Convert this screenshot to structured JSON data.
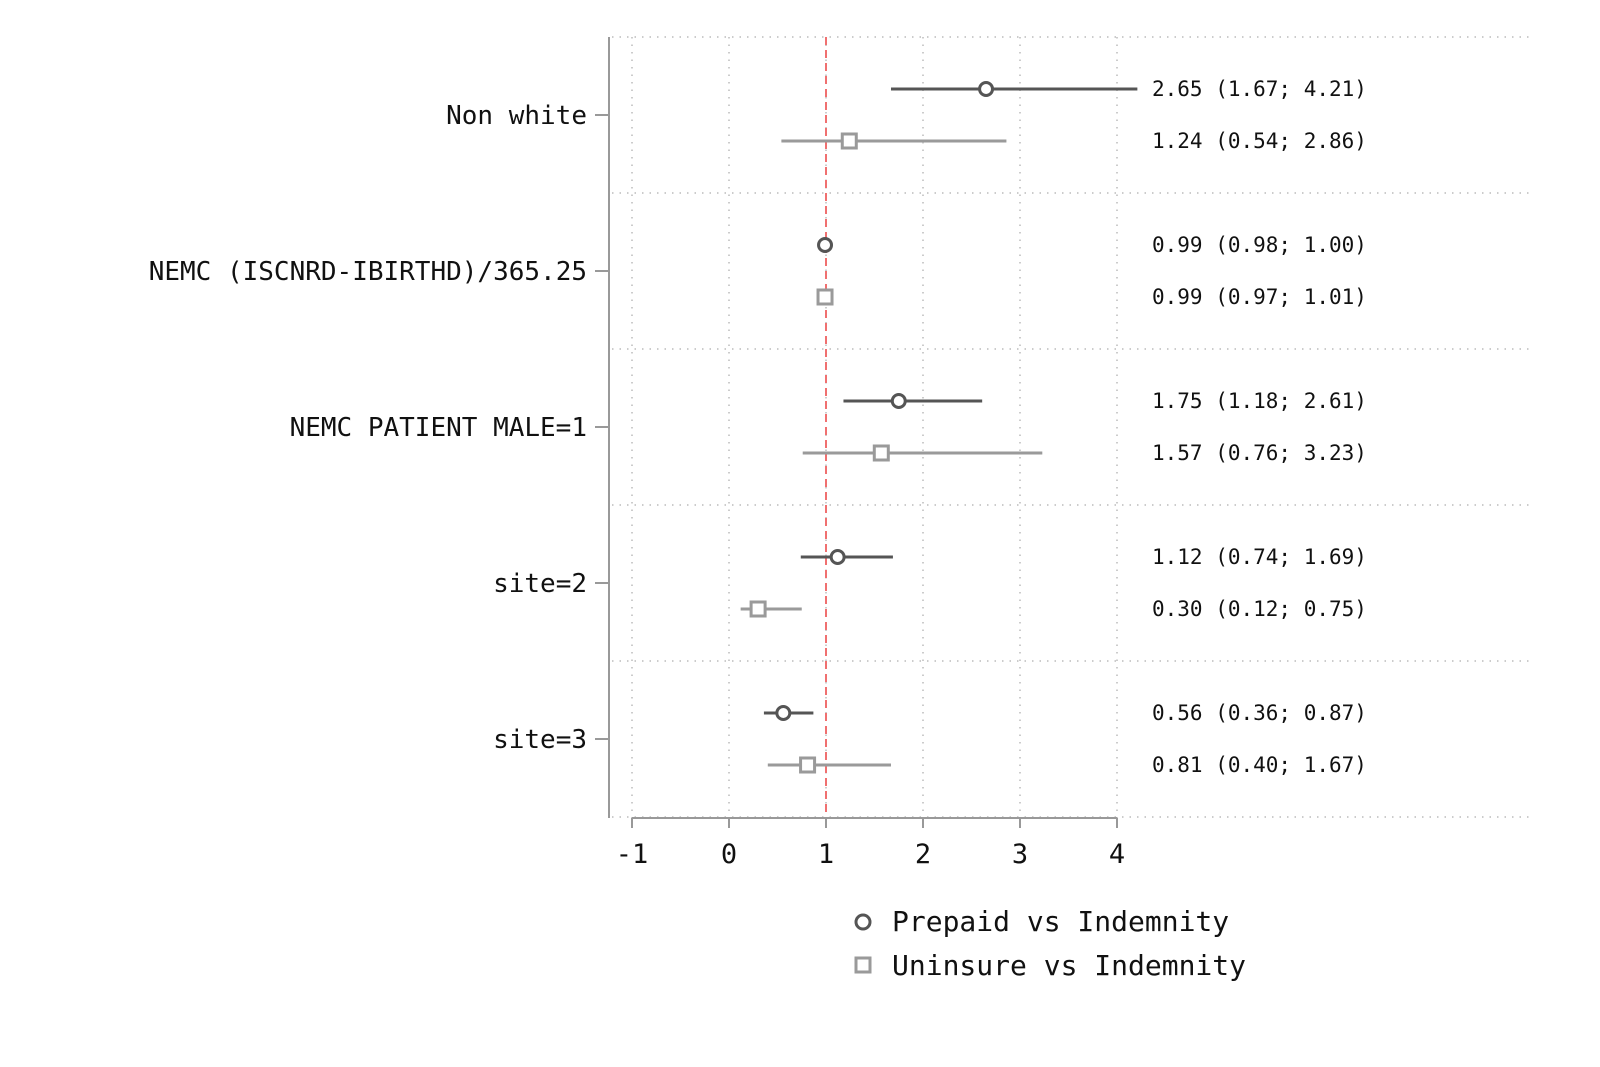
{
  "chart_data": {
    "type": "forest",
    "xlim": [
      -1,
      4
    ],
    "xticks": [
      -1,
      0,
      1,
      2,
      3,
      4
    ],
    "reference_line": 1,
    "grid": true,
    "legend_position": "bottom",
    "colors": {
      "prepaid": "#555555",
      "uninsure": "#9a9a9a",
      "reference": "#f07070",
      "axis": "#999999",
      "grid": "#bbbbbb"
    },
    "series": [
      {
        "name": "Prepaid vs Indemnity",
        "marker": "circle"
      },
      {
        "name": "Uninsure vs Indemnity",
        "marker": "square"
      }
    ],
    "rows": [
      {
        "label": "Non white",
        "estimates": [
          {
            "est": 2.65,
            "lo": 1.67,
            "hi": 4.21,
            "text": "2.65 (1.67; 4.21)"
          },
          {
            "est": 1.24,
            "lo": 0.54,
            "hi": 2.86,
            "text": "1.24 (0.54; 2.86)"
          }
        ]
      },
      {
        "label": "NEMC (ISCNRD-IBIRTHD)/365.25",
        "estimates": [
          {
            "est": 0.99,
            "lo": 0.98,
            "hi": 1.0,
            "text": "0.99 (0.98; 1.00)"
          },
          {
            "est": 0.99,
            "lo": 0.97,
            "hi": 1.01,
            "text": "0.99 (0.97; 1.01)"
          }
        ]
      },
      {
        "label": "NEMC PATIENT MALE=1",
        "estimates": [
          {
            "est": 1.75,
            "lo": 1.18,
            "hi": 2.61,
            "text": "1.75 (1.18; 2.61)"
          },
          {
            "est": 1.57,
            "lo": 0.76,
            "hi": 3.23,
            "text": "1.57 (0.76; 3.23)"
          }
        ]
      },
      {
        "label": "site=2",
        "estimates": [
          {
            "est": 1.12,
            "lo": 0.74,
            "hi": 1.69,
            "text": "1.12 (0.74; 1.69)"
          },
          {
            "est": 0.3,
            "lo": 0.12,
            "hi": 0.75,
            "text": "0.30 (0.12; 0.75)"
          }
        ]
      },
      {
        "label": "site=3",
        "estimates": [
          {
            "est": 0.56,
            "lo": 0.36,
            "hi": 0.87,
            "text": "0.56 (0.36; 0.87)"
          },
          {
            "est": 0.81,
            "lo": 0.4,
            "hi": 1.67,
            "text": "0.81 (0.40; 1.67)"
          }
        ]
      }
    ]
  }
}
